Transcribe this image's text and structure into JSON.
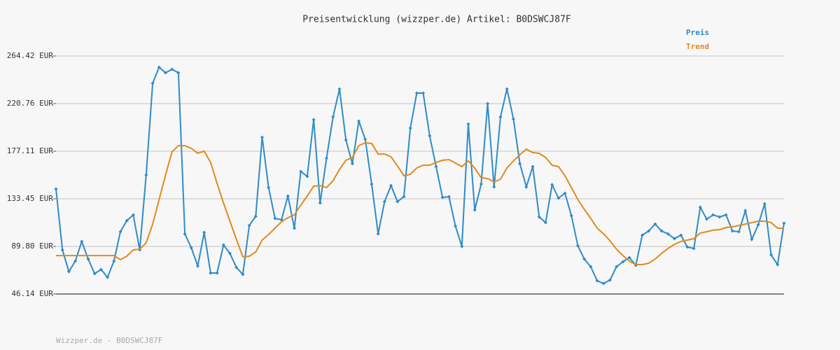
{
  "chart_data": {
    "type": "line",
    "title": "Preisentwicklung (wizzper.de) Artikel: B0DSWCJ87F",
    "footer": "Wizzper.de - B0DSWCJ87F",
    "ylim": [
      46.14,
      264.42
    ],
    "yticks": [
      {
        "value": 46.14,
        "label": "46.14 EUR"
      },
      {
        "value": 89.8,
        "label": "89.80 EUR"
      },
      {
        "value": 133.45,
        "label": "133.45 EUR"
      },
      {
        "value": 177.11,
        "label": "177.11 EUR"
      },
      {
        "value": 220.76,
        "label": "220.76 EUR"
      },
      {
        "value": 264.42,
        "label": "264.42 EUR"
      }
    ],
    "grid": true,
    "legend": "top-right",
    "series": [
      {
        "name": "Preis",
        "color": "#2e8bc8",
        "markers": true,
        "values": [
          142.4,
          86.6,
          66.7,
          76.3,
          94.3,
          78.2,
          64.8,
          68.6,
          61.5,
          76.3,
          103.3,
          113.5,
          118.7,
          86.6,
          155.3,
          239.4,
          254.1,
          249.0,
          252.2,
          249.0,
          101.3,
          88.5,
          71.8,
          102.6,
          65.4,
          65.4,
          91.1,
          83.4,
          70.5,
          64.1,
          109.0,
          117.4,
          189.9,
          143.7,
          115.5,
          114.2,
          136.0,
          106.5,
          158.5,
          154.0,
          206.0,
          129.6,
          170.7,
          208.6,
          234.2,
          187.4,
          165.6,
          204.7,
          188.0,
          146.9,
          101.3,
          130.9,
          145.6,
          130.9,
          135.4,
          198.3,
          230.4,
          230.4,
          191.2,
          163.0,
          134.7,
          135.4,
          108.4,
          89.8,
          202.1,
          123.2,
          146.9,
          220.8,
          144.4,
          208.6,
          234.2,
          206.6,
          165.6,
          144.4,
          163.0,
          116.8,
          111.6,
          146.3,
          134.1,
          138.6,
          118.0,
          90.4,
          78.2,
          71.2,
          58.3,
          55.8,
          59.0,
          71.2,
          75.7,
          79.5,
          72.5,
          100.1,
          103.9,
          110.3,
          103.9,
          101.3,
          96.9,
          100.1,
          89.2,
          87.9,
          125.7,
          114.8,
          118.7,
          116.8,
          118.7,
          103.9,
          103.3,
          122.5,
          96.2,
          109.7,
          128.9,
          82.1,
          73.1,
          111.0
        ]
      },
      {
        "name": "Trend",
        "color": "#e08a1e",
        "markers": false,
        "values": [
          81.4,
          81.4,
          81.4,
          81.4,
          81.4,
          81.4,
          81.4,
          81.4,
          81.4,
          81.4,
          77.6,
          80.8,
          86.6,
          87.2,
          93.0,
          110.3,
          132.8,
          155.3,
          176.5,
          182.2,
          182.2,
          179.7,
          175.2,
          177.1,
          166.8,
          147.6,
          129.6,
          112.9,
          96.2,
          80.2,
          80.8,
          84.7,
          95.6,
          100.7,
          106.5,
          112.3,
          116.1,
          118.7,
          127.7,
          136.0,
          145.0,
          145.6,
          143.7,
          150.1,
          160.4,
          168.8,
          171.3,
          182.2,
          184.8,
          184.2,
          174.5,
          174.5,
          172.0,
          163.6,
          154.6,
          155.9,
          161.7,
          164.3,
          164.3,
          166.8,
          168.8,
          169.4,
          166.2,
          163.0,
          168.1,
          161.7,
          152.7,
          152.0,
          148.9,
          151.4,
          161.7,
          168.1,
          173.9,
          179.0,
          175.8,
          175.2,
          171.3,
          164.3,
          163.0,
          154.6,
          143.7,
          132.8,
          123.8,
          115.5,
          106.5,
          101.3,
          94.9,
          87.2,
          81.4,
          76.3,
          73.1,
          73.1,
          74.4,
          78.2,
          83.4,
          87.9,
          91.7,
          94.3,
          95.6,
          96.9,
          102.0,
          103.3,
          104.6,
          105.2,
          107.1,
          107.8,
          109.0,
          110.3,
          111.6,
          112.9,
          112.9,
          111.6,
          106.5,
          106.5
        ]
      }
    ]
  }
}
